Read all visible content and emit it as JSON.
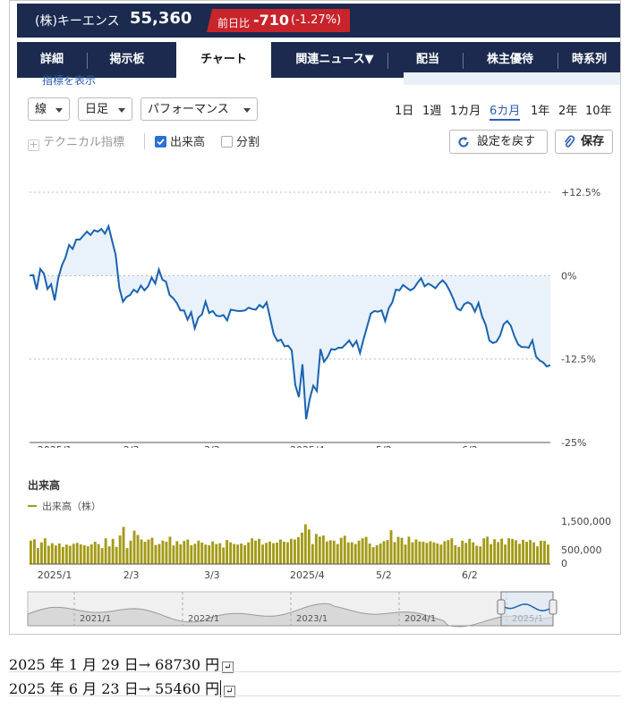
{
  "stock": {
    "name": "(株)キーエンス",
    "price": "55,360",
    "change_label": "前日比",
    "change": "-710",
    "change_pct": "(-1.27%)"
  },
  "tabs": [
    {
      "label": "詳細"
    },
    {
      "label": "掲示板"
    },
    {
      "label": "チャート"
    },
    {
      "label": "関連ニュース▼"
    },
    {
      "label": "配当"
    },
    {
      "label": "株主優待"
    },
    {
      "label": "時系列"
    }
  ],
  "controls": {
    "chart_type": "線",
    "interval": "日足",
    "mode": "パフォーマンス",
    "ranges": [
      "1日",
      "1週",
      "1カ月",
      "6カ月",
      "1年",
      "2年",
      "10年"
    ],
    "active_range": "6カ月",
    "technical": "テクニカル指標",
    "volume_check": "出来高",
    "split_check": "分割",
    "reset": "設定を戻す",
    "save": "保存",
    "partial_link": "指標を表示"
  },
  "chart_data": {
    "type": "line",
    "ylim": [
      -25,
      12.5
    ],
    "ytick_labels": [
      "+12.5%",
      "0%",
      "-12.5%",
      "-25%"
    ],
    "xtick_labels": [
      "2025/1",
      "2/3",
      "3/3",
      "2025/4",
      "5/2",
      "6/2"
    ],
    "series": [
      {
        "values": [
          0,
          0.1,
          -2.1,
          1,
          0.3,
          -2,
          -1.3,
          -3.7,
          -0.4,
          1.5,
          2.7,
          4.6,
          4,
          5.4,
          5.4,
          6,
          6.6,
          6.1,
          6.8,
          6.6,
          7,
          6.3,
          7.4,
          5.2,
          3.1,
          -1.8,
          -3.9,
          -3.2,
          -2.9,
          -2.1,
          -2.5,
          -1.5,
          -2.2,
          -1.6,
          -0.3,
          -1.2,
          0.9,
          -0.6,
          -0.9,
          -2.9,
          -3.4,
          -4.1,
          -5.2,
          -5.2,
          -6.6,
          -5.5,
          -7.9,
          -6.3,
          -5.8,
          -3.9,
          -5.6,
          -5.3,
          -6,
          -6.1,
          -5.9,
          -6.7,
          -5.1,
          -5.2,
          -5.3,
          -5.3,
          -5.2,
          -4.8,
          -5,
          -5.1,
          -4.4,
          -4.8,
          -4,
          -6.4,
          -8.8,
          -9.8,
          -9.6,
          -10.6,
          -10.5,
          -11.2,
          -16.4,
          -18.2,
          -13.3,
          -21.5,
          -18.5,
          -16.5,
          -17.3,
          -11,
          -12.9,
          -12.2,
          -11,
          -11.1,
          -10.8,
          -10.8,
          -10.3,
          -9.7,
          -10.6,
          -9.8,
          -11.6,
          -9.5,
          -7.6,
          -5.7,
          -5.3,
          -5.4,
          -5.2,
          -6.8,
          -4.9,
          -4,
          -2.1,
          -2.2,
          -1.4,
          -1.8,
          -2.2,
          -1.9,
          -1.1,
          -0.4,
          -1.6,
          -1.2,
          -1.5,
          -1.9,
          -1.2,
          -0.7,
          -1.3,
          -2.3,
          -3.5,
          -4.9,
          -5.2,
          -4.3,
          -4,
          -4.3,
          -5.4,
          -4.1,
          -6.1,
          -7.4,
          -9.7,
          -10.1,
          -9.9,
          -9,
          -7.3,
          -6.8,
          -7.5,
          -9.1,
          -10.3,
          -10.7,
          -10.7,
          -10.8,
          -9.7,
          -12.1,
          -12.7,
          -13,
          -13.6,
          -13.4
        ]
      }
    ],
    "volume": {
      "title": "出来高",
      "legend": "出来高（株）",
      "ylim": [
        0,
        1500000
      ],
      "ytick_labels": [
        "1,500,000",
        "500,000",
        "0"
      ],
      "values": [
        820000,
        870000,
        560000,
        760000,
        900000,
        640000,
        730000,
        650000,
        720000,
        600000,
        680000,
        640000,
        710000,
        740000,
        690000,
        660000,
        620000,
        690000,
        780000,
        700000,
        560000,
        900000,
        620000,
        880000,
        600000,
        1000000,
        1300000,
        560000,
        820000,
        1170000,
        1020000,
        860000,
        780000,
        860000,
        920000,
        670000,
        700000,
        820000,
        780000,
        960000,
        650000,
        800000,
        690000,
        810000,
        860000,
        660000,
        710000,
        820000,
        750000,
        680000,
        660000,
        790000,
        700000,
        730000,
        580000,
        840000,
        760000,
        700000,
        680000,
        720000,
        660000,
        760000,
        900000,
        820000,
        880000,
        680000,
        740000,
        790000,
        730000,
        750000,
        860000,
        780000,
        760000,
        880000,
        860000,
        940000,
        1100000,
        1390000,
        1210000,
        700000,
        1050000,
        960000,
        1000000,
        790000,
        830000,
        820000,
        700000,
        920000,
        990000,
        760000,
        760000,
        700000,
        820000,
        900000,
        950000,
        720000,
        590000,
        660000,
        720000,
        800000,
        840000,
        1180000,
        770000,
        950000,
        920000,
        680000,
        960000,
        760000,
        860000,
        790000,
        780000,
        740000,
        800000,
        760000,
        720000,
        680000,
        800000,
        840000,
        900000,
        660000,
        600000,
        820000,
        740000,
        880000,
        760000,
        640000,
        620000,
        900000,
        960000,
        700000,
        870000,
        770000,
        890000,
        680000,
        900000,
        880000,
        830000,
        710000,
        850000,
        780000,
        840000,
        760000,
        620000,
        820000,
        810000,
        680000
      ]
    },
    "navigator_labels": [
      "2021/1",
      "2022/1",
      "2023/1",
      "2024/1",
      "2025/1"
    ]
  },
  "notes": [
    "2025 年 1 月 29 日→ 68730 円",
    "2025 年 6 月 23 日→ 55460 円"
  ],
  "colors": {
    "header": "#1b2a4e",
    "change_bg": "#c8242b",
    "line": "#1a63b0",
    "area": "#e9f1fa",
    "volume": "#a39a16",
    "accent": "#2a5db0"
  }
}
